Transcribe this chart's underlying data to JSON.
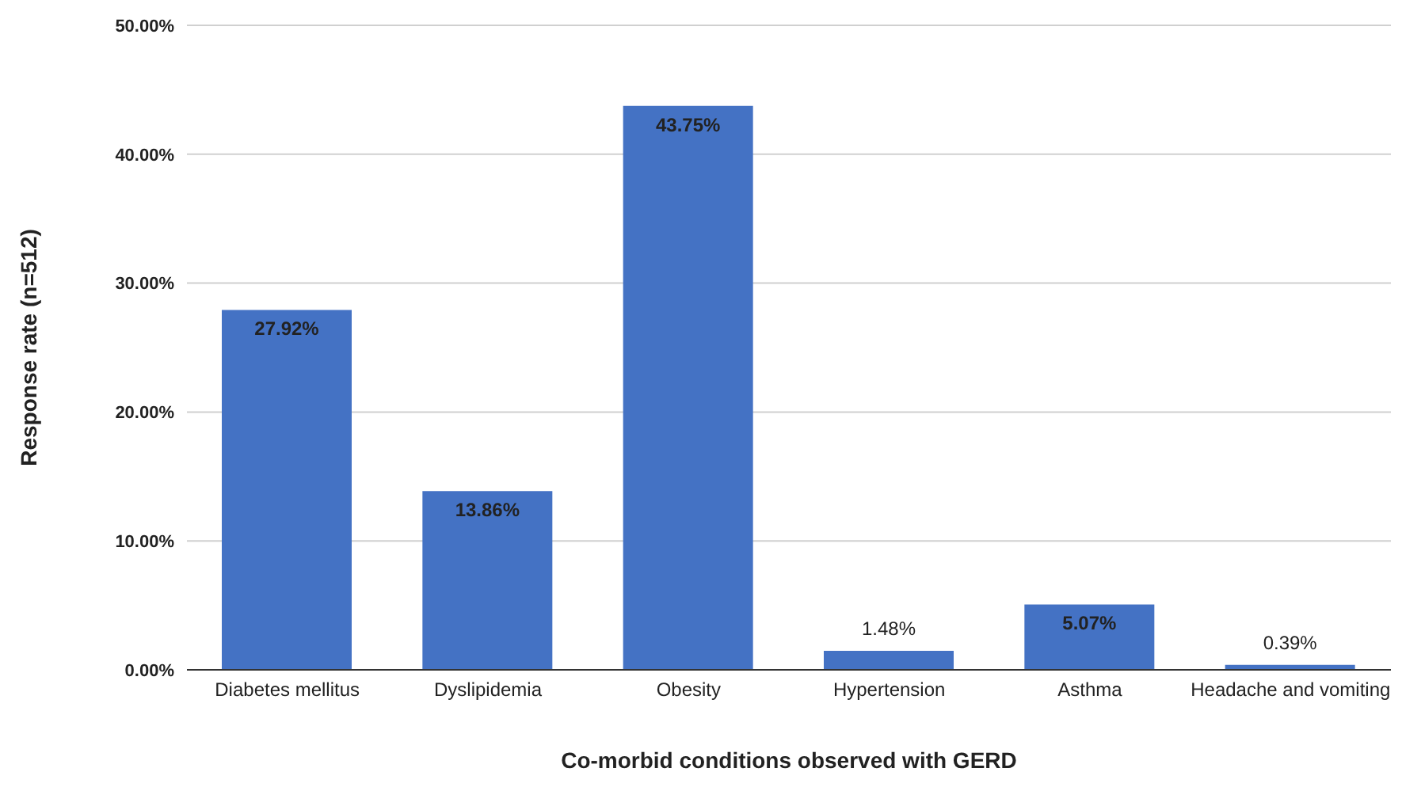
{
  "chart_data": {
    "type": "bar",
    "xlabel": "Co-morbid conditions observed with GERD",
    "ylabel": "Response rate (n=512)",
    "categories": [
      "Diabetes mellitus",
      "Dyslipidemia",
      "Obesity",
      "Hypertension",
      "Asthma",
      "Headache and vomiting"
    ],
    "values": [
      27.92,
      13.86,
      43.75,
      1.48,
      5.07,
      0.39
    ],
    "value_labels": [
      "27.92%",
      "13.86%",
      "43.75%",
      "1.48%",
      "5.07%",
      "0.39%"
    ],
    "color": "#4472c4",
    "ylim": [
      0,
      50
    ],
    "yticks": [
      {
        "value": 0,
        "label": "0.00%"
      },
      {
        "value": 10,
        "label": "10.00%"
      },
      {
        "value": 20,
        "label": "20.00%"
      },
      {
        "value": 30,
        "label": "30.00%"
      },
      {
        "value": 40,
        "label": "40.00%"
      },
      {
        "value": 50,
        "label": "50.00%"
      }
    ],
    "grid": "y",
    "legend": false
  }
}
